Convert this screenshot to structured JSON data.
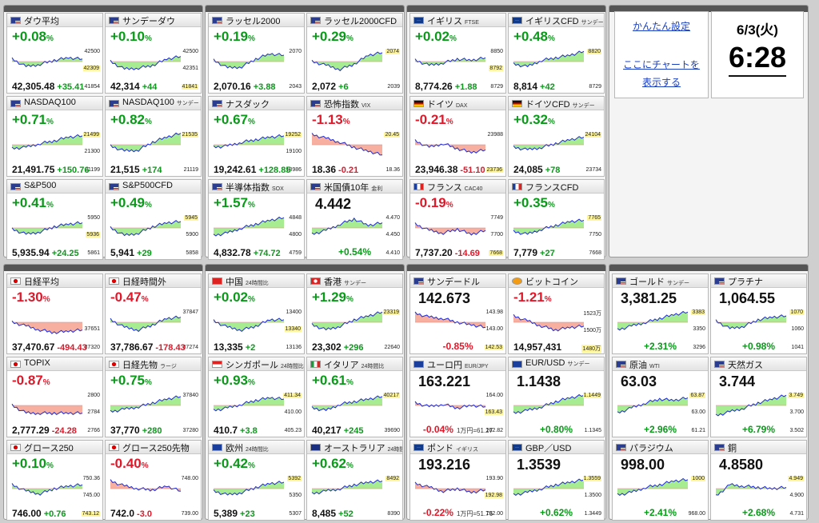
{
  "colors": {
    "up": "#0a9a1a",
    "down": "#e0182a",
    "line": "#1f2bd4",
    "fill_up": "#a8ec92",
    "fill_down": "#f7b0a0",
    "chip": "#fff59d"
  },
  "settings": {
    "simple_settings_link": "かんたん設定",
    "show_chart_here_link_line1": "ここにチャートを",
    "show_chart_here_link_line2": "表示する"
  },
  "clock": {
    "date": "6/3(火)",
    "time": "6:28"
  },
  "tiles": [
    {
      "name": "ダウ平均",
      "sub": "",
      "flag": "us-flag",
      "chg": "+0.08",
      "dir": "up",
      "y": [
        "42500",
        "42309",
        "41854"
      ],
      "hl": 1,
      "price": "42,305.48",
      "delta": "+35.41",
      "trend": [
        0.2,
        -0.4,
        -0.2,
        0.1,
        0.3,
        0.2
      ]
    },
    {
      "name": "サンデーダウ",
      "sub": "",
      "flag": "us-flag",
      "chg": "+0.10",
      "dir": "up",
      "y": [
        "42500",
        "42351",
        "41841"
      ],
      "hl": 2,
      "price": "42,314",
      "delta": "+44",
      "trend": [
        0.0,
        -0.6,
        -0.5,
        -0.3,
        0.2,
        0.4
      ]
    },
    {
      "name": "ラッセル2000",
      "sub": "",
      "flag": "us-flag",
      "chg": "+0.19",
      "dir": "up",
      "y": [
        "2070",
        "",
        "2043"
      ],
      "hl": -1,
      "price": "2,070.16",
      "delta": "+3.88",
      "trend": [
        0.1,
        -0.5,
        -0.4,
        0.2,
        0.6,
        0.5
      ]
    },
    {
      "name": "ラッセル2000CFD",
      "sub": "",
      "flag": "us-flag",
      "chg": "+0.29",
      "dir": "up",
      "y": [
        "2074",
        "",
        "2039"
      ],
      "hl": 0,
      "price": "2,072",
      "delta": "+6",
      "trend": [
        0.0,
        -0.3,
        -0.6,
        -0.2,
        0.5,
        0.7
      ]
    },
    {
      "name": "イギリス",
      "sub": "FTSE",
      "flag": "uk-flag",
      "chg": "+0.02",
      "dir": "up",
      "y": [
        "8850",
        "8792",
        "8729"
      ],
      "hl": 1,
      "price": "8,774.26",
      "delta": "+1.88",
      "trend": [
        0.1,
        -0.3,
        -0.1,
        0.2,
        0.1,
        0.3
      ]
    },
    {
      "name": "イギリスCFD",
      "sub": "サンデー",
      "flag": "uk-flag",
      "chg": "+0.48",
      "dir": "up",
      "y": [
        "8820",
        "",
        "8729"
      ],
      "hl": 0,
      "price": "8,814",
      "delta": "+42",
      "trend": [
        -0.2,
        -0.4,
        0.1,
        0.3,
        0.5,
        0.8
      ]
    },
    {
      "name": "NASDAQ100",
      "sub": "",
      "flag": "us-flag",
      "chg": "+0.71",
      "dir": "up",
      "y": [
        "21499",
        "21300",
        "21199"
      ],
      "hl": 0,
      "price": "21,491.75",
      "delta": "+150.76",
      "trend": [
        -0.3,
        -0.2,
        0.1,
        0.3,
        0.6,
        0.7
      ]
    },
    {
      "name": "NASDAQ100",
      "sub": "サンデー",
      "flag": "us-flag",
      "chg": "+0.82",
      "dir": "up",
      "y": [
        "21535",
        "",
        "21119"
      ],
      "hl": 0,
      "price": "21,515",
      "delta": "+174",
      "trend": [
        -0.1,
        -0.5,
        -0.4,
        0.2,
        0.6,
        0.9
      ]
    },
    {
      "name": "ナスダック",
      "sub": "",
      "flag": "us-flag",
      "chg": "+0.67",
      "dir": "up",
      "y": [
        "19252",
        "19100",
        "18986"
      ],
      "hl": 0,
      "price": "19,242.61",
      "delta": "+128.85",
      "trend": [
        -0.2,
        -0.1,
        0.2,
        0.4,
        0.6,
        0.7
      ]
    },
    {
      "name": "恐怖指数",
      "sub": "VIX",
      "flag": "us-flag",
      "chg": "-1.13",
      "dir": "down",
      "y": [
        "20.45",
        "",
        "18.36"
      ],
      "hl": 0,
      "price": "18.36",
      "delta": "-0.21",
      "trend": [
        0.8,
        0.5,
        0.2,
        -0.2,
        -0.5,
        -0.8
      ]
    },
    {
      "name": "ドイツ",
      "sub": "DAX",
      "flag": "de-flag",
      "chg": "-0.21",
      "dir": "down",
      "y": [
        "23988",
        "",
        "23736"
      ],
      "hl": 2,
      "price": "23,946.38",
      "delta": "-51.10",
      "trend": [
        0.3,
        -0.2,
        0.1,
        -0.3,
        -0.6,
        -0.4
      ]
    },
    {
      "name": "ドイツCFD",
      "sub": "サンデー",
      "flag": "de-flag",
      "chg": "+0.32",
      "dir": "up",
      "y": [
        "24104",
        "",
        "23734"
      ],
      "hl": 0,
      "price": "24,085",
      "delta": "+78",
      "trend": [
        -0.2,
        -0.4,
        -0.2,
        0.1,
        0.4,
        0.6
      ]
    },
    {
      "name": "S&P500",
      "sub": "",
      "flag": "us-flag",
      "chg": "+0.41",
      "dir": "up",
      "y": [
        "5950",
        "5936",
        "5861"
      ],
      "hl": 1,
      "price": "5,935.94",
      "delta": "+24.25",
      "trend": [
        -0.1,
        -0.5,
        -0.3,
        0.1,
        0.3,
        0.4
      ]
    },
    {
      "name": "S&P500CFD",
      "sub": "",
      "flag": "us-flag",
      "chg": "+0.49",
      "dir": "up",
      "y": [
        "5945",
        "5900",
        "5858"
      ],
      "hl": 0,
      "price": "5,941",
      "delta": "+29",
      "trend": [
        0.0,
        -0.6,
        -0.4,
        0.1,
        0.4,
        0.5
      ]
    },
    {
      "name": "半導体指数",
      "sub": "SOX",
      "flag": "us-flag",
      "chg": "+1.57",
      "dir": "up",
      "y": [
        "4848",
        "4800",
        "4759"
      ],
      "hl": -1,
      "price": "4,832.78",
      "delta": "+74.72",
      "trend": [
        -0.6,
        -0.4,
        0.0,
        0.3,
        0.6,
        0.8
      ]
    },
    {
      "name": "米国債10年",
      "sub": "金利",
      "flag": "us-flag",
      "chg": "4.442",
      "dir": "flat",
      "y": [
        "4.470",
        "4.450",
        "4.410"
      ],
      "hl": -1,
      "price": "",
      "delta": "+0.54%",
      "trend": [
        -0.5,
        -0.2,
        0.3,
        0.7,
        0.2,
        0.4
      ]
    },
    {
      "name": "フランス",
      "sub": "CAC40",
      "flag": "fr-flag",
      "chg": "-0.19",
      "dir": "down",
      "y": [
        "7749",
        "7700",
        "7668"
      ],
      "hl": 2,
      "price": "7,737.20",
      "delta": "-14.69",
      "trend": [
        0.3,
        -0.2,
        -0.4,
        -0.1,
        -0.5,
        -0.2
      ]
    },
    {
      "name": "フランスCFD",
      "sub": "",
      "flag": "fr-flag",
      "chg": "+0.35",
      "dir": "up",
      "y": [
        "7765",
        "7750",
        "7668"
      ],
      "hl": 0,
      "price": "7,779",
      "delta": "+27",
      "trend": [
        -0.3,
        -0.5,
        -0.1,
        0.2,
        0.5,
        0.6
      ]
    },
    {
      "name": "日経平均",
      "sub": "",
      "flag": "jp-flag",
      "chg": "-1.30",
      "dir": "down",
      "y": [
        "",
        "37651",
        "37320"
      ],
      "hl": -1,
      "price": "37,470.67",
      "delta": "-494.43",
      "trend": [
        0.0,
        -0.3,
        -0.6,
        -0.8,
        -0.7,
        -0.6
      ]
    },
    {
      "name": "日経時間外",
      "sub": "",
      "flag": "jp-flag",
      "chg": "-0.47",
      "dir": "down",
      "y": [
        "37847",
        "",
        "37274"
      ],
      "hl": -1,
      "price": "37,786.67",
      "delta": "-178.43",
      "trend": [
        0.2,
        -0.4,
        -0.6,
        -0.2,
        0.3,
        0.4
      ]
    },
    {
      "name": "中国",
      "sub": "24時間比",
      "flag": "cn-flag",
      "chg": "+0.02",
      "dir": "up",
      "y": [
        "13400",
        "13340",
        "13136"
      ],
      "hl": 1,
      "price": "13,335",
      "delta": "+2",
      "trend": [
        0.1,
        -0.4,
        -0.6,
        -0.3,
        0.2,
        0.2
      ]
    },
    {
      "name": "香港",
      "sub": "サンデー",
      "flag": "hk-flag",
      "chg": "+1.29",
      "dir": "up",
      "y": [
        "23319",
        "",
        "22640"
      ],
      "hl": 0,
      "price": "23,302",
      "delta": "+296",
      "trend": [
        -0.2,
        -0.6,
        -0.3,
        0.2,
        0.5,
        0.8
      ]
    },
    {
      "name": "サンデードル",
      "sub": "",
      "flag": "us-flag",
      "chg": "142.673",
      "dir": "flat",
      "y": [
        "143.98",
        "143.00",
        "142.53"
      ],
      "hl": 2,
      "price": "",
      "delta": "-0.85%",
      "trend": [
        0.7,
        0.4,
        0.3,
        0.0,
        -0.2,
        -0.4
      ]
    },
    {
      "name": "ビットコイン",
      "sub": "",
      "flag": "btc-flag",
      "chg": "-1.21",
      "dir": "down",
      "y": [
        "1523万",
        "1500万",
        "1480万"
      ],
      "hl": 2,
      "price": "14,957,431",
      "delta": "",
      "trend": [
        0.5,
        0.1,
        -0.3,
        -0.6,
        -0.4,
        -0.3
      ]
    },
    {
      "name": "TOPIX",
      "sub": "",
      "flag": "jp-flag",
      "chg": "-0.87",
      "dir": "down",
      "y": [
        "2800",
        "2784",
        "2766"
      ],
      "hl": -1,
      "price": "2,777.29",
      "delta": "-24.28",
      "trend": [
        0.0,
        -0.6,
        -0.6,
        -0.6,
        -0.6,
        -0.6
      ]
    },
    {
      "name": "日経先物",
      "sub": "ラージ",
      "flag": "jp-flag",
      "chg": "+0.75",
      "dir": "up",
      "y": [
        "37840",
        "",
        "37280"
      ],
      "hl": -1,
      "price": "37,770",
      "delta": "+280",
      "trend": [
        -0.5,
        -0.3,
        -0.1,
        0.2,
        0.5,
        0.7
      ]
    },
    {
      "name": "シンガポール",
      "sub": "24時間比",
      "flag": "sg-flag",
      "chg": "+0.93",
      "dir": "up",
      "y": [
        "411.34",
        "410.00",
        "405.23"
      ],
      "hl": 0,
      "price": "410.7",
      "delta": "+3.8",
      "trend": [
        -0.4,
        -0.2,
        0.1,
        0.4,
        0.6,
        0.5
      ]
    },
    {
      "name": "イタリア",
      "sub": "24時間比",
      "flag": "it-flag",
      "chg": "+0.61",
      "dir": "up",
      "y": [
        "40217",
        "",
        "39690"
      ],
      "hl": 0,
      "price": "40,217",
      "delta": "+245",
      "trend": [
        -0.2,
        -0.4,
        0.1,
        0.3,
        0.5,
        0.7
      ]
    },
    {
      "name": "ユーロ円",
      "sub": "EUR/JPY",
      "flag": "eu-flag",
      "chg": "163.221",
      "dir": "flat",
      "y": [
        "164.00",
        "163.43",
        "162.82"
      ],
      "hl": 1,
      "price": "",
      "delta": "-0.04%",
      "note": "1万円=61.27",
      "trend": [
        0.2,
        -0.1,
        0.1,
        -0.2,
        0.0,
        -0.1
      ]
    },
    {
      "name": "EUR/USD",
      "sub": "サンデー",
      "flag": "eu-flag",
      "chg": "1.1438",
      "dir": "flat",
      "y": [
        "1.1449",
        "",
        "1.1345"
      ],
      "hl": 0,
      "price": "",
      "delta": "+0.80%",
      "trend": [
        -0.6,
        -0.4,
        -0.1,
        0.3,
        0.6,
        0.8
      ]
    },
    {
      "name": "グロース250",
      "sub": "",
      "flag": "jp-flag",
      "chg": "+0.10",
      "dir": "up",
      "y": [
        "750.36",
        "745.00",
        "743.12"
      ],
      "hl": 2,
      "price": "746.00",
      "delta": "+0.76",
      "trend": [
        0.3,
        -0.2,
        -0.4,
        0.0,
        0.2,
        0.3
      ]
    },
    {
      "name": "グロース250先物",
      "sub": "",
      "flag": "jp-flag",
      "chg": "-0.40",
      "dir": "down",
      "y": [
        "748.00",
        "",
        "739.00"
      ],
      "hl": -1,
      "price": "742.0",
      "delta": "-3.0",
      "trend": [
        0.6,
        0.2,
        0.0,
        -0.1,
        0.2,
        -0.2
      ]
    },
    {
      "name": "欧州",
      "sub": "24時間比",
      "flag": "eu-flag",
      "chg": "+0.42",
      "dir": "up",
      "y": [
        "5392",
        "5350",
        "5307"
      ],
      "hl": 0,
      "price": "5,389",
      "delta": "+23",
      "trend": [
        -0.2,
        -0.5,
        -0.3,
        0.1,
        0.4,
        0.5
      ]
    },
    {
      "name": "オーストラリア",
      "sub": "24時間比",
      "flag": "au-flag",
      "chg": "+0.62",
      "dir": "up",
      "y": [
        "8492",
        "",
        "8390"
      ],
      "hl": 0,
      "price": "8,485",
      "delta": "+52",
      "trend": [
        -0.4,
        -0.2,
        0.0,
        0.3,
        0.5,
        0.6
      ]
    },
    {
      "name": "ポンド",
      "sub": "イギリス",
      "flag": "uk-flag",
      "chg": "193.216",
      "dir": "flat",
      "y": [
        "193.90",
        "192.98",
        "192.00"
      ],
      "hl": 1,
      "price": "",
      "delta": "-0.22%",
      "note": "1万円=51.76",
      "trend": [
        0.4,
        0.1,
        -0.2,
        0.0,
        -0.3,
        -0.1
      ]
    },
    {
      "name": "GBP／USD",
      "sub": "",
      "flag": "uk-flag",
      "chg": "1.3539",
      "dir": "flat",
      "y": [
        "1.3559",
        "1.3500",
        "1.3449"
      ],
      "hl": 0,
      "price": "",
      "delta": "+0.62%",
      "trend": [
        -0.5,
        -0.3,
        0.0,
        0.3,
        0.5,
        0.7
      ]
    },
    {
      "name": "ゴールド",
      "sub": "サンデー",
      "flag": "us-flag",
      "chg": "3,381.25",
      "dir": "flat",
      "y": [
        "3383",
        "3350",
        "3296"
      ],
      "hl": 0,
      "price": "",
      "delta": "+2.31%",
      "trend": [
        -0.6,
        -0.3,
        0.0,
        0.3,
        0.6,
        0.8
      ]
    },
    {
      "name": "プラチナ",
      "sub": "",
      "flag": "us-flag",
      "chg": "1,064.55",
      "dir": "flat",
      "y": [
        "1070",
        "1060",
        "1041"
      ],
      "hl": 0,
      "price": "",
      "delta": "+0.98%",
      "trend": [
        0.1,
        -0.5,
        -0.3,
        0.2,
        0.4,
        0.5
      ]
    },
    {
      "name": "原油",
      "sub": "WTI",
      "flag": "us-flag",
      "chg": "63.03",
      "dir": "flat",
      "y": [
        "63.87",
        "63.00",
        "61.21"
      ],
      "hl": 0,
      "price": "",
      "delta": "+2.96%",
      "trend": [
        -0.6,
        -0.2,
        0.2,
        0.5,
        0.4,
        0.6
      ]
    },
    {
      "name": "天然ガス",
      "sub": "",
      "flag": "us-flag",
      "chg": "3.744",
      "dir": "flat",
      "y": [
        "3.749",
        "3.700",
        "3.502"
      ],
      "hl": 0,
      "price": "",
      "delta": "+6.79%",
      "trend": [
        -0.8,
        -0.5,
        -0.2,
        0.2,
        0.5,
        0.8
      ]
    },
    {
      "name": "パラジウム",
      "sub": "",
      "flag": "us-flag",
      "chg": "998.00",
      "dir": "flat",
      "y": [
        "1000",
        "",
        "968.00"
      ],
      "hl": 0,
      "price": "",
      "delta": "+2.41%",
      "trend": [
        -0.5,
        -0.3,
        0.1,
        0.3,
        0.6,
        0.7
      ]
    },
    {
      "name": "銅",
      "sub": "",
      "flag": "us-flag",
      "chg": "4.8580",
      "dir": "flat",
      "y": [
        "4.949",
        "4.900",
        "4.731"
      ],
      "hl": 0,
      "price": "",
      "delta": "+2.68%",
      "trend": [
        -0.6,
        0.3,
        0.2,
        0.1,
        0.0,
        0.1
      ]
    }
  ]
}
